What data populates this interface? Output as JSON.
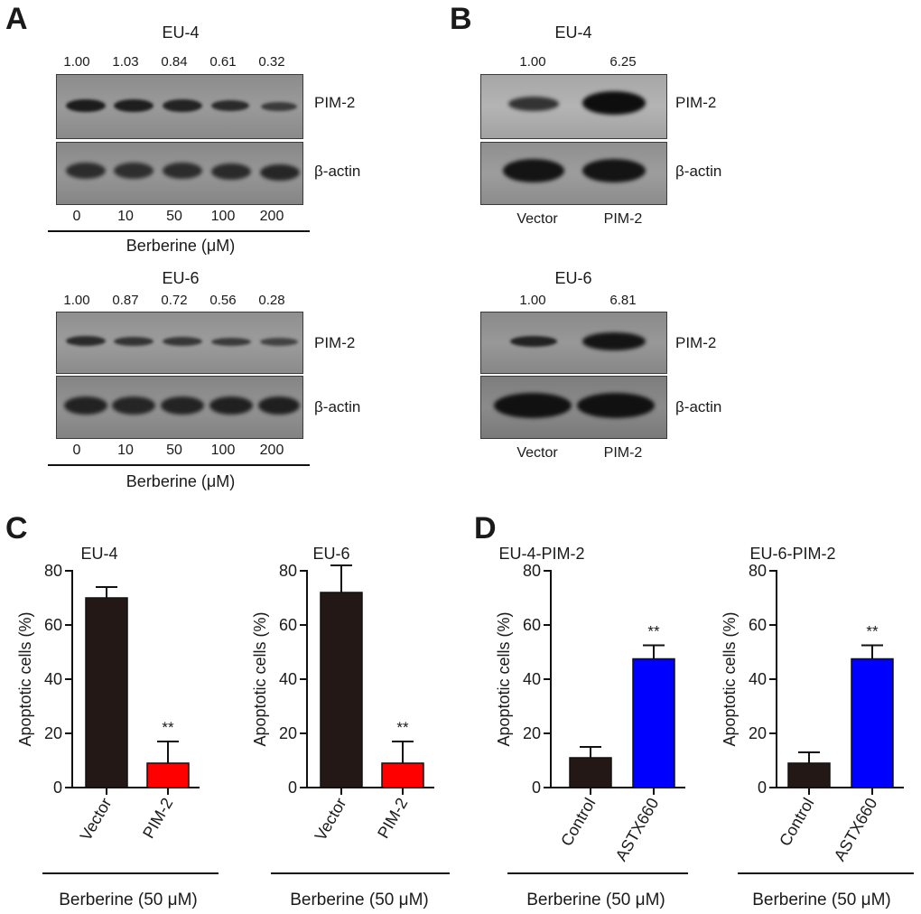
{
  "panels": {
    "A": {
      "letter": "A",
      "blots": [
        {
          "cell_line": "EU-4",
          "ratios": [
            "1.00",
            "1.03",
            "0.84",
            "0.61",
            "0.32"
          ],
          "proteins": [
            "PIM-2",
            "β-actin"
          ],
          "doses": [
            "0",
            "10",
            "50",
            "100",
            "200"
          ],
          "treatment": "Berberine (μM)"
        },
        {
          "cell_line": "EU-6",
          "ratios": [
            "1.00",
            "0.87",
            "0.72",
            "0.56",
            "0.28"
          ],
          "proteins": [
            "PIM-2",
            "β-actin"
          ],
          "doses": [
            "0",
            "10",
            "50",
            "100",
            "200"
          ],
          "treatment": "Berberine (μM)"
        }
      ]
    },
    "B": {
      "letter": "B",
      "blots": [
        {
          "cell_line": "EU-4",
          "ratios": [
            "1.00",
            "6.25"
          ],
          "proteins": [
            "PIM-2",
            "β-actin"
          ],
          "lanes": [
            "Vector",
            "PIM-2"
          ]
        },
        {
          "cell_line": "EU-6",
          "ratios": [
            "1.00",
            "6.81"
          ],
          "proteins": [
            "PIM-2",
            "β-actin"
          ],
          "lanes": [
            "Vector",
            "PIM-2"
          ]
        }
      ]
    },
    "C": {
      "letter": "C"
    },
    "D": {
      "letter": "D"
    }
  },
  "chart_data": [
    {
      "type": "bar",
      "title": "EU-4",
      "categories": [
        "Vector",
        "PIM-2"
      ],
      "values": [
        70,
        9
      ],
      "errors": [
        4,
        8
      ],
      "significance": [
        "",
        "**"
      ],
      "colors": [
        "#231815",
        "#ff0000"
      ],
      "ylabel": "Apoptotic cells (%)",
      "yticks": [
        "0",
        "20",
        "40",
        "60",
        "80"
      ],
      "ylim": [
        0,
        80
      ],
      "xcaption": "Berberine (50 μM)"
    },
    {
      "type": "bar",
      "title": "EU-6",
      "categories": [
        "Vector",
        "PIM-2"
      ],
      "values": [
        72,
        9
      ],
      "errors": [
        10,
        8
      ],
      "significance": [
        "",
        "**"
      ],
      "colors": [
        "#231815",
        "#ff0000"
      ],
      "ylabel": "Apoptotic cells (%)",
      "yticks": [
        "0",
        "20",
        "40",
        "60",
        "80"
      ],
      "ylim": [
        0,
        80
      ],
      "xcaption": "Berberine (50 μM)"
    },
    {
      "type": "bar",
      "title": "EU-4-PIM-2",
      "categories": [
        "Control",
        "ASTX660"
      ],
      "values": [
        11,
        47.5
      ],
      "errors": [
        4,
        5
      ],
      "significance": [
        "",
        "**"
      ],
      "colors": [
        "#231815",
        "#0000ff"
      ],
      "ylabel": "Apoptotic cells (%)",
      "yticks": [
        "0",
        "20",
        "40",
        "60",
        "80"
      ],
      "ylim": [
        0,
        80
      ],
      "xcaption": "Berberine (50 μM)"
    },
    {
      "type": "bar",
      "title": "EU-6-PIM-2",
      "categories": [
        "Control",
        "ASTX660"
      ],
      "values": [
        9,
        47.5
      ],
      "errors": [
        4,
        5
      ],
      "significance": [
        "",
        "**"
      ],
      "colors": [
        "#231815",
        "#0000ff"
      ],
      "ylabel": "Apoptotic cells (%)",
      "yticks": [
        "0",
        "20",
        "40",
        "60",
        "80"
      ],
      "ylim": [
        0,
        80
      ],
      "xcaption": "Berberine (50 μM)"
    }
  ]
}
